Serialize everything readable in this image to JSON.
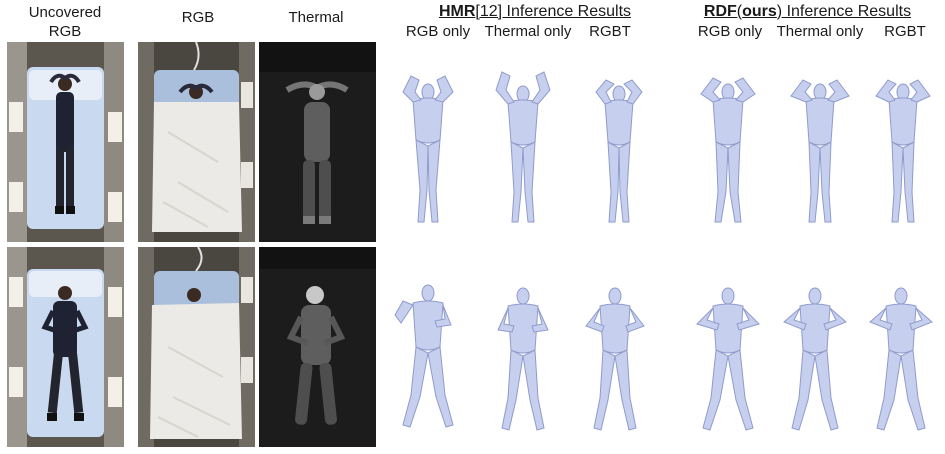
{
  "column_labels": {
    "uncovered_rgb": "Uncovered\nRGB",
    "rgb": "RGB",
    "thermal": "Thermal"
  },
  "groups": [
    {
      "method": "HMR",
      "method_suffix": "[12] Inference Results",
      "sub_labels": [
        "RGB only",
        "Thermal only",
        "RGBT"
      ]
    },
    {
      "method": "RDF",
      "method_paren_open": "(",
      "method_bold2": "ours",
      "method_suffix": ") Inference Results",
      "sub_labels": [
        "RGB only",
        "Thermal only",
        "RGBT"
      ]
    }
  ],
  "colors": {
    "mesh_fill": "#c6cfee",
    "mesh_shade": "#8f9bcc",
    "bed_sheet": "#c9d9ef",
    "blanket": "#ebeae6",
    "floor": "#4a4640",
    "thermal_bg": "#1c1c1c",
    "thermal_body": "#6d6d6d"
  }
}
